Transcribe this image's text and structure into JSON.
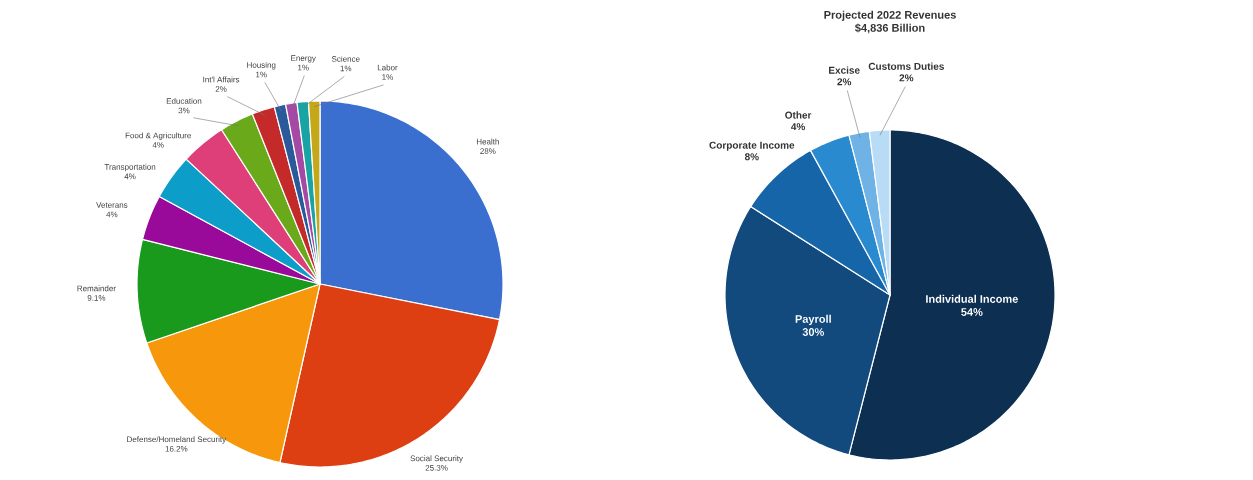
{
  "chart_data": [
    {
      "type": "pie",
      "categories": [
        "Health",
        "Social Security",
        "Defense/Homeland Security",
        "Remainder",
        "Veterans",
        "Transportation",
        "Food & Agriculture",
        "Education",
        "Int'l Affairs",
        "Housing",
        "Energy",
        "Science",
        "Labor"
      ],
      "values": [
        28,
        25.3,
        16.2,
        9.1,
        4,
        4,
        4,
        3,
        2,
        1,
        1,
        1,
        1
      ],
      "value_labels": [
        "28%",
        "25.3%",
        "16.2%",
        "9.1%",
        "4%",
        "4%",
        "4%",
        "3%",
        "2%",
        "1%",
        "1%",
        "1%",
        "1%"
      ],
      "colors": [
        "#3b6fcf",
        "#dd3f12",
        "#f7980c",
        "#1a9a1c",
        "#9a0a9a",
        "#0c9ec8",
        "#de3f78",
        "#6aaa1a",
        "#c42a2a",
        "#2a5a9a",
        "#a44aa4",
        "#1aa3a3",
        "#c4a81a"
      ]
    },
    {
      "type": "pie",
      "title": "Projected 2022 Revenues",
      "subtitle": "$4,836 Billion",
      "categories": [
        "Individual Income",
        "Payroll",
        "Corporate Income",
        "Other",
        "Excise",
        "Customs Duties"
      ],
      "values": [
        54,
        30,
        8,
        4,
        2,
        2
      ],
      "value_labels": [
        "54%",
        "30%",
        "8%",
        "4%",
        "2%",
        "2%"
      ],
      "colors": [
        "#0d2f52",
        "#124a7e",
        "#1565a8",
        "#2a8ad0",
        "#6fb3e6",
        "#b8dcf5"
      ]
    }
  ]
}
